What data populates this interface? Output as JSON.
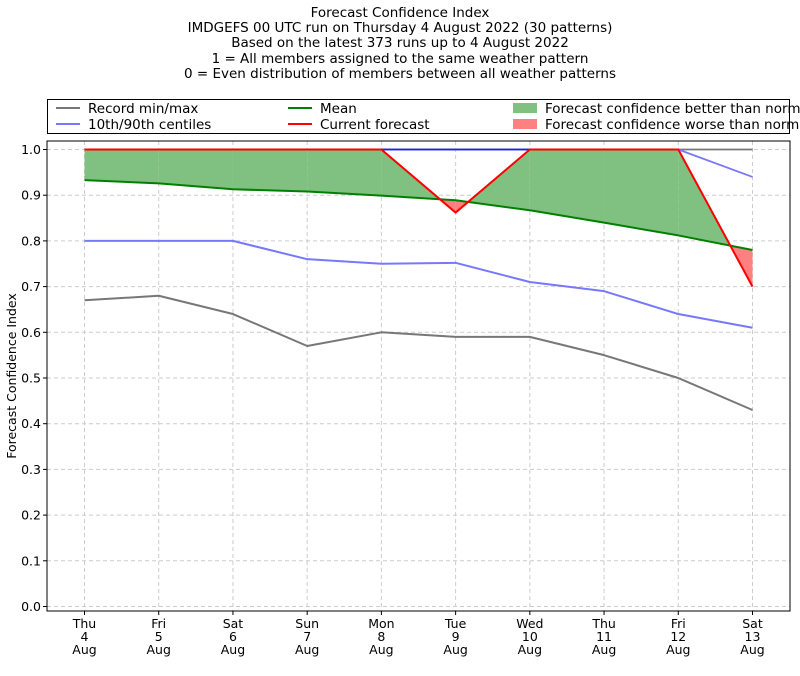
{
  "titles": {
    "line1": "Forecast Confidence Index",
    "line2": "IMDGEFS 00 UTC run on Thursday 4 August 2022 (30 patterns)",
    "line3": "Based on the latest 373 runs up to 4 August 2022",
    "line4": "1 = All members assigned to the same weather pattern",
    "line5": "0 = Even distribution of members between all weather patterns"
  },
  "legend": {
    "record": "Record min/max",
    "centiles": "10th/90th centiles",
    "mean": "Mean",
    "current": "Current forecast",
    "better": "Forecast confidence better than normal",
    "worse": "Forecast confidence worse than normal"
  },
  "colors": {
    "record": "#777777",
    "centiles": "#7777ff",
    "mean": "#008000",
    "current": "#ff0000",
    "better": "#80c080",
    "worse": "#ff8080",
    "record_max": "#2222dd"
  },
  "chart_data": {
    "type": "line",
    "ylabel": "Forecast Confidence Index",
    "ylim": [
      0,
      1
    ],
    "yticks": [
      "0.0",
      "0.1",
      "0.2",
      "0.3",
      "0.4",
      "0.5",
      "0.6",
      "0.7",
      "0.8",
      "0.9",
      "1.0"
    ],
    "grid": true,
    "legend_position": "top",
    "categories": [
      [
        "Thu",
        "4",
        "Aug"
      ],
      [
        "Fri",
        "5",
        "Aug"
      ],
      [
        "Sat",
        "6",
        "Aug"
      ],
      [
        "Sun",
        "7",
        "Aug"
      ],
      [
        "Mon",
        "8",
        "Aug"
      ],
      [
        "Tue",
        "9",
        "Aug"
      ],
      [
        "Wed",
        "10",
        "Aug"
      ],
      [
        "Thu",
        "11",
        "Aug"
      ],
      [
        "Fri",
        "12",
        "Aug"
      ],
      [
        "Sat",
        "13",
        "Aug"
      ]
    ],
    "series": [
      {
        "name": "Record min/max",
        "role": "record_min",
        "values": [
          0.67,
          0.68,
          0.64,
          0.57,
          0.6,
          0.59,
          0.59,
          0.55,
          0.5,
          0.43
        ]
      },
      {
        "name": "Record min/max",
        "role": "record_max",
        "values": [
          1.0,
          1.0,
          1.0,
          1.0,
          1.0,
          1.0,
          1.0,
          1.0,
          1.0,
          1.0
        ]
      },
      {
        "name": "10th/90th centiles",
        "role": "p10",
        "values": [
          0.8,
          0.8,
          0.8,
          0.76,
          0.75,
          0.752,
          0.71,
          0.69,
          0.64,
          0.61
        ]
      },
      {
        "name": "10th/90th centiles",
        "role": "p90",
        "values": [
          1.0,
          1.0,
          1.0,
          1.0,
          1.0,
          1.0,
          1.0,
          1.0,
          1.0,
          0.94
        ]
      },
      {
        "name": "Mean",
        "role": "mean",
        "values": [
          0.933,
          0.926,
          0.913,
          0.908,
          0.899,
          0.889,
          0.867,
          0.84,
          0.812,
          0.78
        ]
      },
      {
        "name": "Current forecast",
        "role": "current",
        "values": [
          1.0,
          1.0,
          1.0,
          1.0,
          1.0,
          0.862,
          1.0,
          1.0,
          1.0,
          0.7
        ]
      }
    ]
  }
}
